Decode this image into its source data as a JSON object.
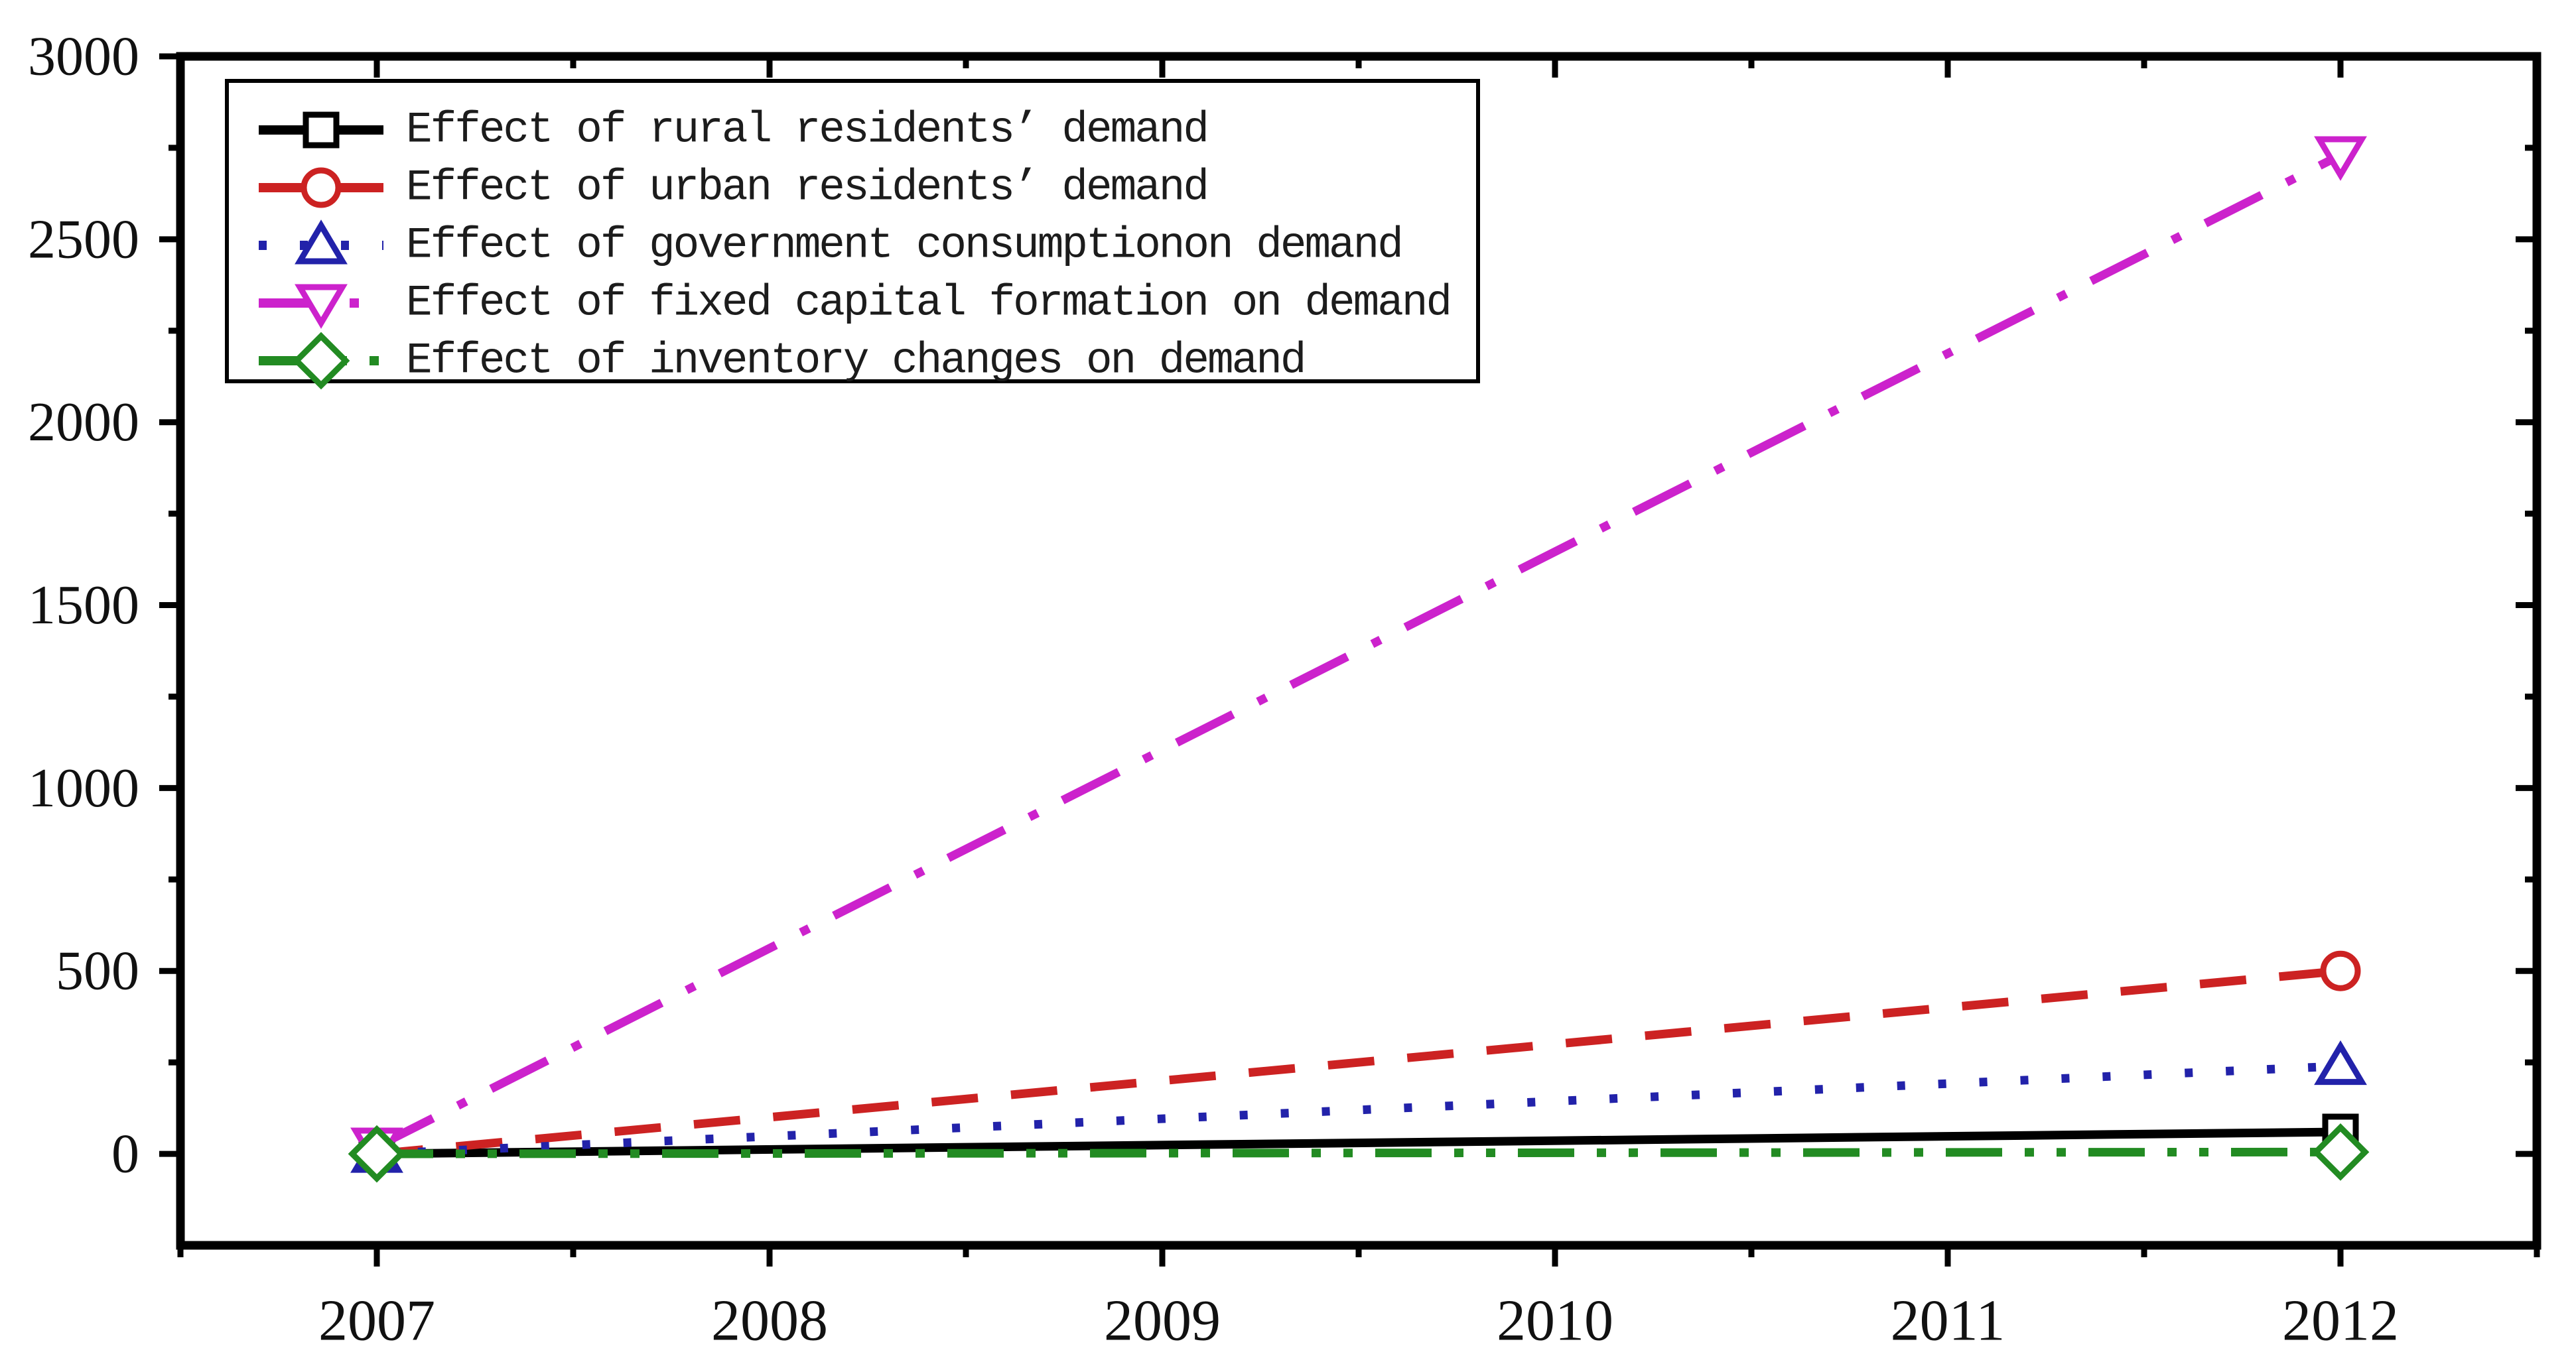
{
  "chart_data": {
    "type": "line",
    "title": "",
    "xlabel": "",
    "ylabel": "",
    "background": "#ffffff",
    "frame_color": "#000000",
    "grid": false,
    "legend_position": "top-left",
    "xlim": [
      2006.5,
      2012.5
    ],
    "ylim": [
      -250,
      3000
    ],
    "x_major_ticks": [
      2007,
      2008,
      2009,
      2010,
      2011,
      2012
    ],
    "x_minor_ticks": [
      2006.5,
      2007.5,
      2008.5,
      2009.5,
      2010.5,
      2011.5,
      2012.5
    ],
    "x_tick_labels": [
      "2007",
      "2008",
      "2009",
      "2010",
      "2011",
      "2012"
    ],
    "y_major_ticks": [
      0,
      500,
      1000,
      1500,
      2000,
      2500,
      3000
    ],
    "y_minor_ticks": [
      250,
      750,
      1250,
      1750,
      2250,
      2750
    ],
    "y_tick_labels": [
      "0",
      "500",
      "1000",
      "1500",
      "2000",
      "2500",
      "3000"
    ],
    "x_values": [
      2007,
      2012
    ],
    "series": [
      {
        "id": "rural-residents",
        "label": "Effect of rural residents’ demand",
        "color": "#000000",
        "line_style": "solid",
        "marker": "square",
        "values": [
          0,
          60
        ]
      },
      {
        "id": "urban-residents",
        "label": "Effect of urban residents’ demand",
        "color": "#cc2222",
        "line_style": "dashed",
        "marker": "circle",
        "values": [
          0,
          500
        ]
      },
      {
        "id": "government-consumption",
        "label": "Effect of government consumptionon demand",
        "color": "#2222aa",
        "line_style": "dotted",
        "marker": "triangle-up",
        "values": [
          0,
          240
        ]
      },
      {
        "id": "fixed-capital-formation",
        "label": "Effect of fixed capital formation on demand",
        "color": "#cc22cc",
        "line_style": "dash-dot",
        "marker": "triangle-down",
        "values": [
          20,
          2730
        ]
      },
      {
        "id": "inventory-changes",
        "label": "Effect of inventory changes on demand",
        "color": "#228b22",
        "line_style": "dash-dot-dot",
        "marker": "diamond",
        "values": [
          0,
          5
        ]
      }
    ]
  }
}
